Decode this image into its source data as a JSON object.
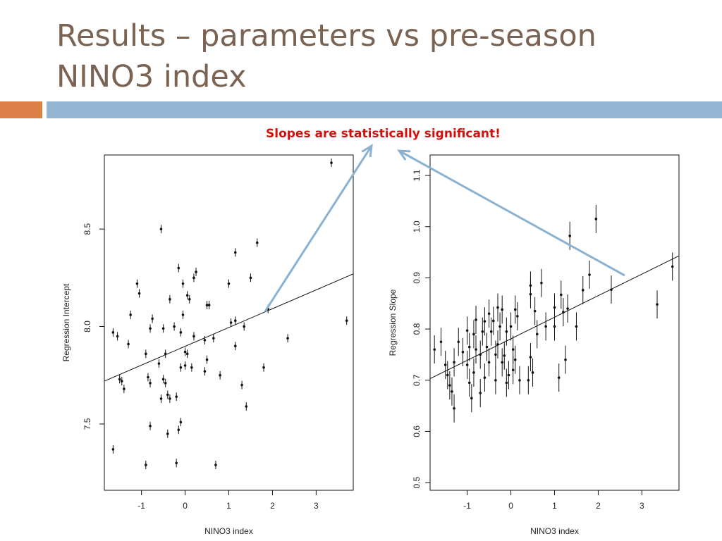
{
  "slide": {
    "title": "Results – parameters vs pre-season NINO3 index",
    "callout": "Slopes are statistically significant!",
    "colors": {
      "title": "#7a6352",
      "accent_bar": "#dd8047",
      "main_bar": "#94b6d2",
      "callout": "#d4100c",
      "arrow": "#8ab2d0"
    }
  },
  "chart_data": [
    {
      "type": "scatter",
      "title": "",
      "xlabel": "NINO3 index",
      "ylabel": "Regression Intercept",
      "xlim": [
        -1.85,
        3.85
      ],
      "ylim": [
        7.16,
        8.88
      ],
      "xticks": [
        -1,
        0,
        1,
        2,
        3
      ],
      "yticks": [
        7.5,
        8.0,
        8.5
      ],
      "grid": false,
      "fit_line": {
        "x": [
          -1.85,
          3.85
        ],
        "y": [
          7.72,
          8.27
        ]
      },
      "points": [
        [
          3.35,
          8.84
        ],
        [
          1.65,
          8.43
        ],
        [
          -0.55,
          8.5
        ],
        [
          1.15,
          8.38
        ],
        [
          1.5,
          8.25
        ],
        [
          -1.1,
          8.22
        ],
        [
          -1.05,
          8.17
        ],
        [
          -0.15,
          8.3
        ],
        [
          0.25,
          8.28
        ],
        [
          0.2,
          8.25
        ],
        [
          -0.05,
          8.22
        ],
        [
          0.05,
          8.16
        ],
        [
          0.1,
          8.14
        ],
        [
          -0.35,
          8.14
        ],
        [
          1.0,
          8.22
        ],
        [
          0.5,
          8.11
        ],
        [
          0.55,
          8.11
        ],
        [
          -1.25,
          8.06
        ],
        [
          -0.75,
          8.04
        ],
        [
          -0.05,
          8.06
        ],
        [
          1.05,
          8.02
        ],
        [
          1.15,
          8.03
        ],
        [
          1.35,
          8.0
        ],
        [
          1.9,
          8.09
        ],
        [
          3.7,
          8.03
        ],
        [
          -1.65,
          7.97
        ],
        [
          -1.55,
          7.95
        ],
        [
          -0.8,
          7.99
        ],
        [
          -0.5,
          7.99
        ],
        [
          -0.25,
          8.0
        ],
        [
          -0.1,
          7.97
        ],
        [
          0.2,
          7.95
        ],
        [
          0.65,
          7.94
        ],
        [
          2.35,
          7.94
        ],
        [
          -1.3,
          7.91
        ],
        [
          0.45,
          7.93
        ],
        [
          -0.9,
          7.86
        ],
        [
          -0.6,
          7.81
        ],
        [
          -0.45,
          7.86
        ],
        [
          0.0,
          7.87
        ],
        [
          0.05,
          7.86
        ],
        [
          0.5,
          7.83
        ],
        [
          1.15,
          7.9
        ],
        [
          -1.5,
          7.73
        ],
        [
          -1.45,
          7.72
        ],
        [
          -1.4,
          7.68
        ],
        [
          -0.85,
          7.74
        ],
        [
          -0.8,
          7.71
        ],
        [
          -0.5,
          7.73
        ],
        [
          -0.45,
          7.71
        ],
        [
          -0.1,
          7.79
        ],
        [
          0.0,
          7.8
        ],
        [
          0.15,
          7.79
        ],
        [
          0.45,
          7.77
        ],
        [
          0.8,
          7.75
        ],
        [
          1.8,
          7.79
        ],
        [
          -0.55,
          7.63
        ],
        [
          -0.4,
          7.65
        ],
        [
          -0.35,
          7.63
        ],
        [
          -0.2,
          7.64
        ],
        [
          1.3,
          7.7
        ],
        [
          1.4,
          7.59
        ],
        [
          -0.8,
          7.49
        ],
        [
          -0.4,
          7.45
        ],
        [
          -0.15,
          7.47
        ],
        [
          -0.1,
          7.51
        ],
        [
          -1.65,
          7.37
        ],
        [
          -0.2,
          7.3
        ],
        [
          -0.9,
          7.29
        ],
        [
          0.7,
          7.29
        ]
      ]
    },
    {
      "type": "scatter",
      "title": "",
      "xlabel": "NINO3 index",
      "ylabel": "Regression Slope",
      "xlim": [
        -1.85,
        3.85
      ],
      "ylim": [
        0.485,
        1.14
      ],
      "xticks": [
        -1,
        0,
        1,
        2,
        3
      ],
      "yticks": [
        0.5,
        0.6,
        0.7,
        0.8,
        0.9,
        1.0,
        1.1
      ],
      "grid": false,
      "fit_line": {
        "x": [
          -1.85,
          3.85
        ],
        "y": [
          0.703,
          0.943
        ]
      },
      "points": [
        [
          1.95,
          1.015
        ],
        [
          1.35,
          0.982
        ],
        [
          3.7,
          0.922
        ],
        [
          1.8,
          0.906
        ],
        [
          0.7,
          0.89
        ],
        [
          0.45,
          0.885
        ],
        [
          2.3,
          0.877
        ],
        [
          1.65,
          0.876
        ],
        [
          0.45,
          0.868
        ],
        [
          1.15,
          0.867
        ],
        [
          3.35,
          0.848
        ],
        [
          -0.3,
          0.842
        ],
        [
          -0.2,
          0.838
        ],
        [
          0.1,
          0.838
        ],
        [
          1.0,
          0.842
        ],
        [
          1.3,
          0.84
        ],
        [
          1.2,
          0.833
        ],
        [
          0.55,
          0.835
        ],
        [
          0.15,
          0.825
        ],
        [
          -0.5,
          0.83
        ],
        [
          -0.4,
          0.816
        ],
        [
          -0.6,
          0.815
        ],
        [
          -0.8,
          0.818
        ],
        [
          -0.25,
          0.805
        ],
        [
          0.0,
          0.805
        ],
        [
          0.8,
          0.805
        ],
        [
          1.0,
          0.805
        ],
        [
          1.5,
          0.805
        ],
        [
          -1.0,
          0.797
        ],
        [
          -0.85,
          0.79
        ],
        [
          -0.65,
          0.795
        ],
        [
          -0.45,
          0.795
        ],
        [
          -0.1,
          0.795
        ],
        [
          0.6,
          0.79
        ],
        [
          -1.6,
          0.775
        ],
        [
          -1.2,
          0.775
        ],
        [
          -0.95,
          0.765
        ],
        [
          -0.8,
          0.76
        ],
        [
          -0.55,
          0.765
        ],
        [
          -0.3,
          0.77
        ],
        [
          0.05,
          0.76
        ],
        [
          -1.75,
          0.76
        ],
        [
          -1.1,
          0.755
        ],
        [
          -0.7,
          0.75
        ],
        [
          -0.35,
          0.75
        ],
        [
          -0.15,
          0.748
        ],
        [
          0.1,
          0.74
        ],
        [
          0.45,
          0.745
        ],
        [
          -1.5,
          0.73
        ],
        [
          -1.3,
          0.735
        ],
        [
          -1.0,
          0.73
        ],
        [
          -0.5,
          0.735
        ],
        [
          -0.2,
          0.735
        ],
        [
          0.05,
          0.72
        ],
        [
          1.25,
          0.74
        ],
        [
          -1.45,
          0.71
        ],
        [
          -0.85,
          0.715
        ],
        [
          -0.6,
          0.705
        ],
        [
          -0.35,
          0.7
        ],
        [
          -0.05,
          0.71
        ],
        [
          0.5,
          0.715
        ],
        [
          -1.4,
          0.69
        ],
        [
          -0.95,
          0.695
        ],
        [
          -0.1,
          0.695
        ],
        [
          0.2,
          0.7
        ],
        [
          0.4,
          0.7
        ],
        [
          1.1,
          0.705
        ],
        [
          -1.35,
          0.678
        ],
        [
          -0.7,
          0.675
        ],
        [
          -1.3,
          0.645
        ],
        [
          -0.9,
          0.665
        ]
      ]
    }
  ]
}
